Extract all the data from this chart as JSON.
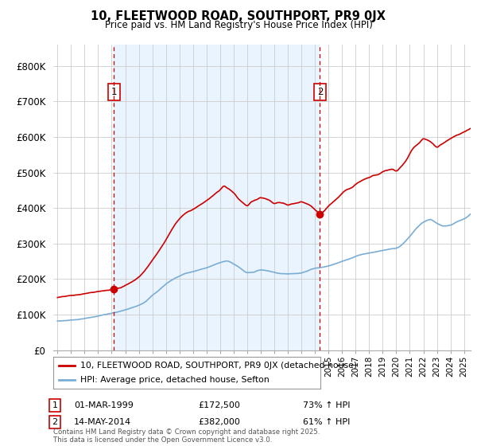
{
  "title": "10, FLEETWOOD ROAD, SOUTHPORT, PR9 0JX",
  "subtitle": "Price paid vs. HM Land Registry's House Price Index (HPI)",
  "legend_line1": "10, FLEETWOOD ROAD, SOUTHPORT, PR9 0JX (detached house)",
  "legend_line2": "HPI: Average price, detached house, Sefton",
  "annotation1_label": "1",
  "annotation1_date": "01-MAR-1999",
  "annotation1_price": "£172,500",
  "annotation1_hpi": "73% ↑ HPI",
  "annotation2_label": "2",
  "annotation2_date": "14-MAY-2014",
  "annotation2_price": "£382,000",
  "annotation2_hpi": "61% ↑ HPI",
  "footer": "Contains HM Land Registry data © Crown copyright and database right 2025.\nThis data is licensed under the Open Government Licence v3.0.",
  "red_color": "#cc0000",
  "blue_color": "#7aadd4",
  "vline_color": "#cc0000",
  "shade_color": "#ddeeff",
  "grid_color": "#cccccc",
  "background_color": "#ffffff",
  "ylim": [
    0,
    860000
  ],
  "yticks": [
    0,
    100000,
    200000,
    300000,
    400000,
    500000,
    600000,
    700000,
    800000
  ],
  "ytick_labels": [
    "£0",
    "£100K",
    "£200K",
    "£300K",
    "£400K",
    "£500K",
    "£600K",
    "£700K",
    "£800K"
  ],
  "marker1_x": 1999.17,
  "marker1_y": 172500,
  "marker2_x": 2014.37,
  "marker2_y": 382000,
  "vline1_x": 1999.17,
  "vline2_x": 2014.37,
  "xmin": 1995.0,
  "xmax": 2025.5
}
